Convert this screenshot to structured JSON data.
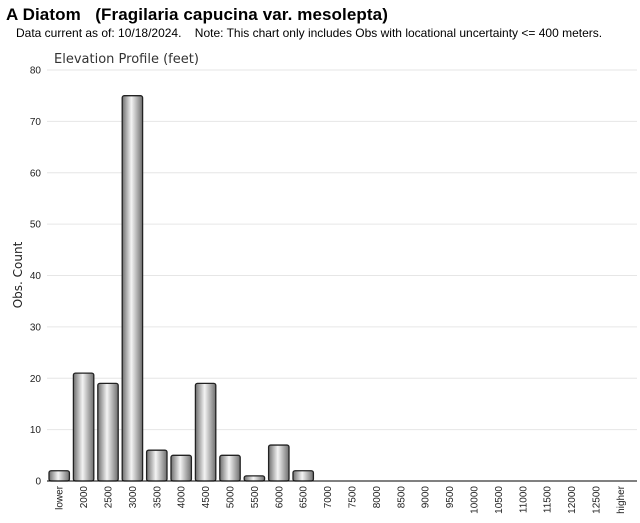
{
  "header": {
    "title": "A Diatom   (Fragilaria capucina var. mesolepta)",
    "subtitle": "Data current as of: 10/18/2024.    Note: This chart only includes Obs with locational uncertainty <= 400 meters."
  },
  "chart_data": {
    "type": "bar",
    "title": "Elevation Profile (feet)",
    "xlabel": "",
    "ylabel": "Obs. Count",
    "ylim": [
      0,
      80
    ],
    "yticks": [
      0,
      10,
      20,
      30,
      40,
      50,
      60,
      70,
      80
    ],
    "grid": true,
    "categories": [
      "lower",
      "2000",
      "2500",
      "3000",
      "3500",
      "4000",
      "4500",
      "5000",
      "5500",
      "6000",
      "6500",
      "7000",
      "7500",
      "8000",
      "8500",
      "9000",
      "9500",
      "10000",
      "10500",
      "11000",
      "11500",
      "12000",
      "12500",
      "higher"
    ],
    "values": [
      2,
      21,
      19,
      75,
      6,
      5,
      19,
      5,
      1,
      7,
      2,
      0,
      0,
      0,
      0,
      0,
      0,
      0,
      0,
      0,
      0,
      0,
      0,
      0
    ],
    "colors": {
      "bar_edge": "#222222",
      "bar_light": "#f4f4f4",
      "bar_dark": "#6e6e6e",
      "grid": "#e6e6e6",
      "axis": "#000000"
    }
  }
}
